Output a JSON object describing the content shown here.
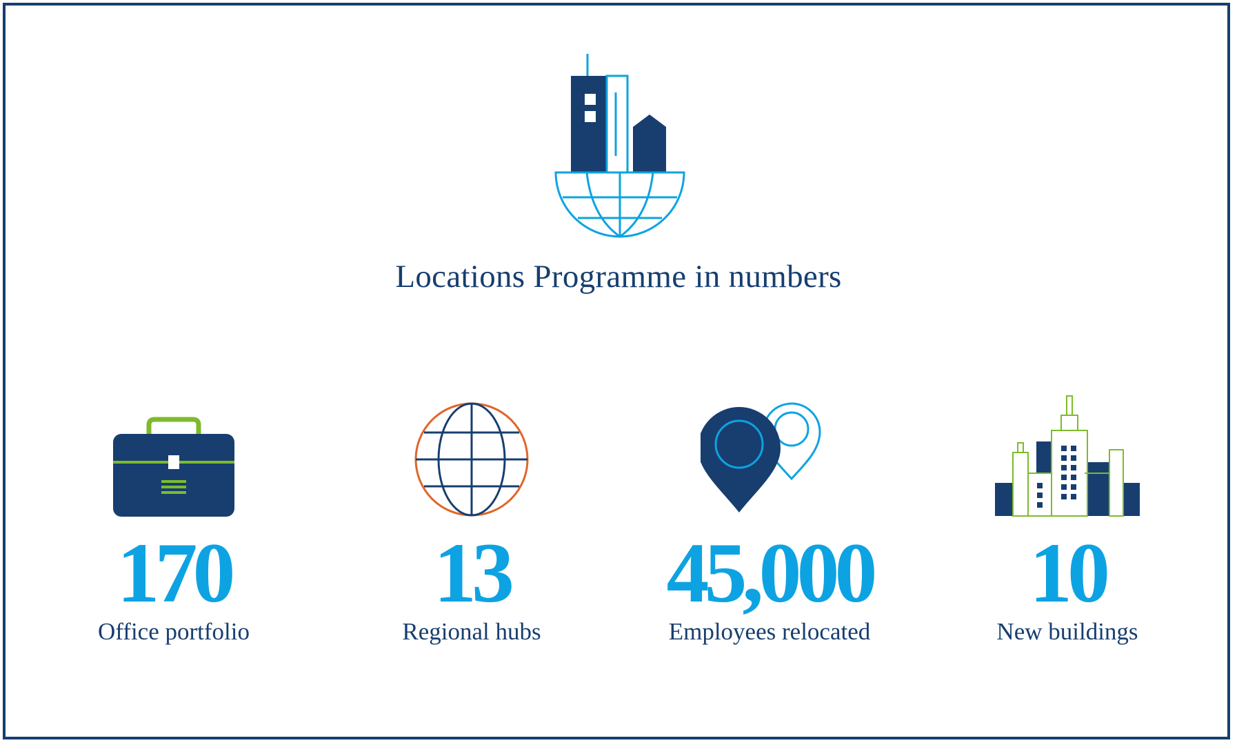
{
  "header": {
    "icon": "city-globe-icon",
    "title": "Locations Programme in numbers"
  },
  "colors": {
    "navy": "#173e6f",
    "sky": "#0da3e2",
    "green": "#7dbb2b",
    "orange": "#e0652a"
  },
  "stats": [
    {
      "icon": "briefcase-icon",
      "value": "170",
      "label": "Office portfolio"
    },
    {
      "icon": "globe-icon",
      "value": "13",
      "label": "Regional hubs"
    },
    {
      "icon": "location-pins-icon",
      "value": "45,000",
      "label": "Employees relocated"
    },
    {
      "icon": "buildings-icon",
      "value": "10",
      "label": "New buildings"
    }
  ]
}
